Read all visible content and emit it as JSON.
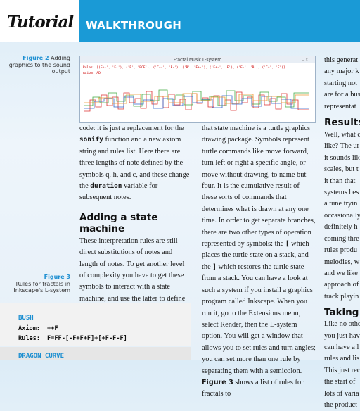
{
  "header": {
    "tab": "Tutorial",
    "section": "WALKTHROUGH"
  },
  "figure2": {
    "label": "Figure 2",
    "caption": "Adding graphics to the sound output",
    "window_title": "Fractal Music L-system",
    "rules": "Rules: [(F+-', 'F-'), ('B', 'BCF'), ('C+-', 'F-'), ('B', 'F+-'), ('F+-', 'F'), ('F-', 'B'), ('C+', 'F')]",
    "axiom": "Axiom: AD"
  },
  "figure3": {
    "label": "Figure 3",
    "caption": "Rules for fractals in Inkscape's L-system"
  },
  "column1": {
    "p1": [
      "code: it is just a replacement for the ",
      "sonify",
      " function and a new axiom string and rules list. Here there are three lengths of note defined by the symbols q, h, and c, and these change the ",
      "duration",
      " variable for subsequent notes."
    ],
    "heading": "Adding a state machine",
    "p2": "These interpretation rules are still direct substitutions of notes and length of notes. To get another level of complexity you have to get these symbols to interact with a state machine, and use the latter to define various parameters of the music. When this system is used for producing fractal drawings,"
  },
  "column2": {
    "p1": [
      "that state machine is a turtle graphics drawing package. Symbols represent turtle commands like move forward, turn left or right a specific angle, or move without drawing, to name but four. It is the cumulative result of these sorts of commands that determines what is drawn at any one time. In order to get separate branches, there are two other types of operation represented by symbols: the ",
      "[",
      " which places the turtle state on a stack, and the ",
      "]",
      " which restores the turtle state from a stack. You can have a look at such a system if you install a graphics program called Inkscape. When you run it, go to the Extensions menu, select Render, then the L-system option. You will get a window that allows you to set rules and turn angles; you can set more than one rule by separating them with a semicolon. ",
      "Figure 3",
      " shows a list of rules for fractals to"
    ]
  },
  "column3": {
    "lines1": [
      "this generat",
      "any major k",
      "starting not",
      "are for a bus",
      "representat"
    ],
    "heading1": "Results",
    "lines2": [
      "Well, what c",
      "like? The ur",
      "it sounds lik",
      "scales, but t",
      "it than that",
      "systems bes",
      "a tune tryin",
      "occasionally",
      "definitely h",
      "coming thre",
      "rules produ",
      "melodies, w",
      "and we like",
      "approach of",
      "track playin"
    ],
    "heading2": "Taking i",
    "lines3": [
      "Like no othe",
      "you just hav",
      "can have a l",
      "rules and lis",
      "This just rec",
      "the start of",
      "lots of varia",
      "the product"
    ]
  },
  "code_box": {
    "title1": "BUSH",
    "axiom_label": "Axiom:",
    "axiom": "++F",
    "rules_label": "Rules:",
    "rules": "F=FF-[-F+F+F]+[+F-F-F]",
    "title2": "DRAGON CURVE"
  }
}
